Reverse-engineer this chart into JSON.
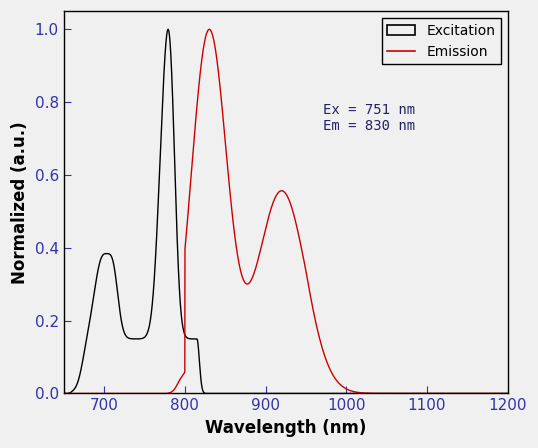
{
  "title": "",
  "xlabel": "Wavelength (nm)",
  "ylabel": "Normalized (a.u.)",
  "xlim": [
    650,
    1200
  ],
  "ylim": [
    0.0,
    1.05
  ],
  "yticks": [
    0.0,
    0.2,
    0.4,
    0.6,
    0.8,
    1.0
  ],
  "xticks": [
    700,
    800,
    900,
    1000,
    1100,
    1200
  ],
  "excitation_color": "#000000",
  "emission_color": "#cc0000",
  "annotation_color": "#222266",
  "annotation_text": "Ex = 751 nm\nEm = 830 nm",
  "legend_excitation": "Excitation",
  "legend_emission": "Emission",
  "figsize": [
    5.38,
    4.48
  ],
  "dpi": 100,
  "bg_color": "#f0f0f0"
}
